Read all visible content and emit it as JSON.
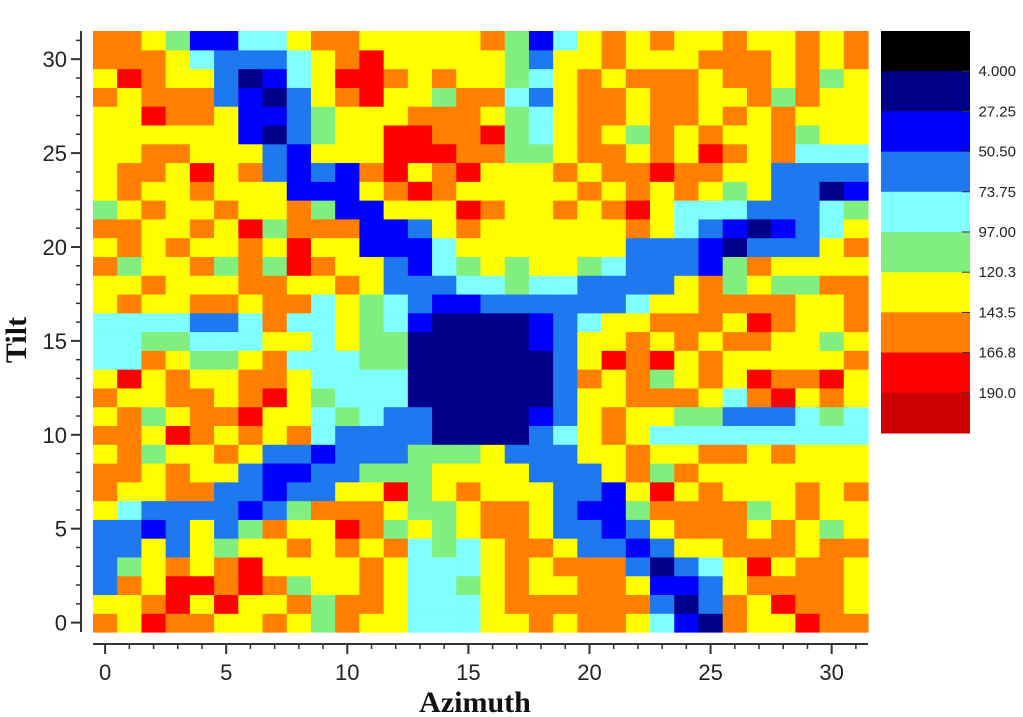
{
  "chart_data": {
    "type": "heatmap",
    "title": "",
    "xlabel": "Azimuth",
    "ylabel": "Tilt",
    "xlim": [
      -0.5,
      31.5
    ],
    "ylim": [
      -0.5,
      31.5
    ],
    "x_ticks": [
      0,
      5,
      10,
      15,
      20,
      25,
      30
    ],
    "y_ticks": [
      0,
      5,
      10,
      15,
      20,
      25,
      30
    ],
    "x_count": 32,
    "y_count": 32,
    "colorbar": {
      "position": "right",
      "labels": [
        "4.000",
        "27.25",
        "50.50",
        "73.75",
        "97.00",
        "120.3",
        "143.5",
        "166.8",
        "190.0"
      ],
      "colors": [
        "#000000",
        "#00008b",
        "#0000ff",
        "#1e78f0",
        "#7fffff",
        "#80ef80",
        "#ffff00",
        "#ff7f00",
        "#ff0000",
        "#cc0000"
      ]
    },
    "color_bins": [
      "#00008b",
      "#0000ff",
      "#1e78f0",
      "#7fffff",
      "#80ef80",
      "#ffff00",
      "#ff7f00",
      "#ff0000"
    ],
    "bin_upper_edges": [
      27.25,
      50.5,
      73.75,
      97.0,
      120.3,
      143.5,
      166.8,
      190.0
    ],
    "values_note_rows": "grid[row] = tilt value row; row 0 is tilt=0, columns are azimuth 0..31",
    "grid": [
      [
        155,
        130,
        180,
        155,
        155,
        130,
        130,
        155,
        130,
        105,
        155,
        130,
        130,
        85,
        85,
        85,
        130,
        130,
        155,
        130,
        155,
        155,
        130,
        85,
        40,
        20,
        155,
        130,
        130,
        180,
        155,
        155
      ],
      [
        130,
        130,
        155,
        180,
        130,
        180,
        130,
        130,
        155,
        105,
        155,
        155,
        130,
        85,
        85,
        85,
        130,
        155,
        155,
        155,
        155,
        155,
        155,
        60,
        20,
        60,
        155,
        130,
        180,
        155,
        155,
        130
      ],
      [
        60,
        155,
        130,
        180,
        180,
        155,
        180,
        155,
        105,
        130,
        130,
        155,
        130,
        85,
        85,
        105,
        130,
        155,
        130,
        130,
        155,
        155,
        130,
        40,
        40,
        60,
        130,
        155,
        155,
        155,
        155,
        130
      ],
      [
        60,
        105,
        130,
        155,
        130,
        155,
        180,
        130,
        130,
        130,
        130,
        155,
        130,
        85,
        85,
        85,
        130,
        155,
        130,
        155,
        155,
        155,
        60,
        20,
        60,
        85,
        130,
        180,
        130,
        155,
        155,
        130
      ],
      [
        60,
        60,
        130,
        60,
        130,
        105,
        130,
        130,
        155,
        130,
        155,
        130,
        155,
        85,
        105,
        85,
        130,
        155,
        155,
        130,
        60,
        60,
        40,
        60,
        130,
        130,
        155,
        155,
        155,
        130,
        155,
        155
      ],
      [
        60,
        60,
        40,
        60,
        130,
        60,
        105,
        155,
        130,
        130,
        180,
        155,
        105,
        130,
        105,
        130,
        155,
        155,
        130,
        60,
        60,
        40,
        60,
        130,
        155,
        155,
        155,
        130,
        155,
        130,
        105,
        130
      ],
      [
        130,
        85,
        60,
        60,
        60,
        60,
        40,
        60,
        105,
        155,
        155,
        155,
        130,
        105,
        105,
        130,
        155,
        155,
        130,
        60,
        40,
        40,
        105,
        155,
        155,
        155,
        155,
        105,
        130,
        155,
        130,
        130
      ],
      [
        155,
        130,
        130,
        155,
        155,
        60,
        60,
        40,
        60,
        60,
        130,
        130,
        180,
        105,
        130,
        155,
        130,
        130,
        130,
        60,
        60,
        40,
        130,
        180,
        130,
        155,
        130,
        130,
        130,
        155,
        130,
        155
      ],
      [
        155,
        155,
        130,
        155,
        130,
        130,
        60,
        40,
        40,
        60,
        60,
        105,
        105,
        105,
        130,
        130,
        130,
        130,
        60,
        60,
        60,
        130,
        155,
        105,
        155,
        130,
        130,
        130,
        130,
        130,
        130,
        130
      ],
      [
        130,
        155,
        105,
        130,
        130,
        155,
        130,
        60,
        60,
        40,
        60,
        60,
        60,
        105,
        105,
        105,
        130,
        60,
        60,
        60,
        130,
        130,
        155,
        130,
        130,
        155,
        155,
        130,
        155,
        130,
        130,
        130
      ],
      [
        155,
        155,
        130,
        180,
        155,
        130,
        155,
        130,
        155,
        85,
        60,
        60,
        60,
        60,
        20,
        20,
        20,
        20,
        60,
        85,
        130,
        155,
        130,
        85,
        85,
        85,
        85,
        85,
        85,
        85,
        85,
        85
      ],
      [
        130,
        155,
        105,
        130,
        155,
        155,
        180,
        130,
        130,
        85,
        105,
        85,
        60,
        60,
        20,
        20,
        20,
        20,
        40,
        60,
        130,
        155,
        130,
        130,
        105,
        105,
        60,
        60,
        60,
        85,
        105,
        85
      ],
      [
        155,
        130,
        130,
        155,
        155,
        130,
        155,
        180,
        130,
        105,
        85,
        85,
        85,
        20,
        20,
        20,
        20,
        20,
        20,
        60,
        130,
        130,
        155,
        155,
        155,
        130,
        85,
        155,
        180,
        130,
        155,
        130
      ],
      [
        130,
        180,
        130,
        155,
        130,
        130,
        155,
        155,
        130,
        85,
        85,
        85,
        85,
        20,
        20,
        20,
        20,
        20,
        20,
        60,
        155,
        130,
        155,
        105,
        130,
        155,
        130,
        180,
        155,
        155,
        180,
        130
      ],
      [
        85,
        85,
        155,
        130,
        105,
        105,
        130,
        155,
        85,
        85,
        85,
        105,
        105,
        20,
        20,
        20,
        20,
        20,
        20,
        60,
        130,
        180,
        155,
        180,
        130,
        155,
        130,
        130,
        130,
        130,
        130,
        155
      ],
      [
        85,
        85,
        105,
        105,
        85,
        85,
        85,
        130,
        130,
        85,
        130,
        105,
        105,
        20,
        20,
        20,
        20,
        20,
        40,
        60,
        130,
        130,
        155,
        130,
        155,
        130,
        155,
        155,
        130,
        130,
        105,
        130
      ],
      [
        85,
        85,
        85,
        85,
        60,
        60,
        85,
        155,
        85,
        85,
        130,
        105,
        85,
        40,
        20,
        20,
        20,
        20,
        40,
        60,
        85,
        130,
        130,
        155,
        155,
        155,
        130,
        180,
        155,
        130,
        130,
        155
      ],
      [
        130,
        155,
        130,
        130,
        155,
        155,
        130,
        155,
        155,
        85,
        130,
        105,
        85,
        60,
        40,
        40,
        60,
        60,
        60,
        60,
        60,
        60,
        85,
        130,
        130,
        155,
        155,
        155,
        155,
        130,
        130,
        155
      ],
      [
        130,
        130,
        155,
        130,
        130,
        130,
        155,
        155,
        130,
        130,
        155,
        130,
        60,
        60,
        60,
        85,
        85,
        105,
        85,
        85,
        60,
        60,
        60,
        60,
        130,
        155,
        105,
        130,
        105,
        105,
        155,
        155
      ],
      [
        155,
        105,
        130,
        130,
        155,
        105,
        155,
        105,
        180,
        155,
        130,
        130,
        60,
        40,
        85,
        105,
        130,
        105,
        130,
        130,
        105,
        85,
        60,
        60,
        60,
        40,
        105,
        155,
        130,
        130,
        130,
        130
      ],
      [
        130,
        155,
        130,
        155,
        130,
        130,
        155,
        130,
        180,
        130,
        130,
        40,
        40,
        40,
        85,
        130,
        130,
        130,
        130,
        130,
        130,
        130,
        60,
        60,
        60,
        40,
        20,
        60,
        60,
        60,
        130,
        155
      ],
      [
        155,
        155,
        130,
        130,
        155,
        130,
        180,
        105,
        155,
        155,
        155,
        40,
        40,
        60,
        130,
        155,
        130,
        130,
        130,
        130,
        130,
        130,
        155,
        130,
        85,
        60,
        40,
        20,
        40,
        60,
        85,
        130
      ],
      [
        105,
        130,
        155,
        130,
        130,
        155,
        130,
        130,
        155,
        105,
        40,
        40,
        130,
        130,
        130,
        180,
        155,
        130,
        130,
        155,
        130,
        155,
        180,
        130,
        85,
        85,
        85,
        60,
        60,
        60,
        85,
        105
      ],
      [
        130,
        155,
        130,
        130,
        155,
        130,
        130,
        130,
        40,
        40,
        40,
        130,
        155,
        180,
        155,
        130,
        130,
        130,
        130,
        130,
        155,
        130,
        155,
        130,
        155,
        130,
        105,
        130,
        60,
        60,
        20,
        40
      ],
      [
        130,
        155,
        155,
        130,
        180,
        130,
        155,
        60,
        40,
        60,
        40,
        155,
        180,
        130,
        155,
        180,
        130,
        130,
        130,
        155,
        130,
        155,
        155,
        180,
        155,
        155,
        130,
        130,
        60,
        60,
        60,
        60
      ],
      [
        130,
        130,
        155,
        155,
        130,
        130,
        130,
        60,
        40,
        130,
        130,
        130,
        180,
        180,
        180,
        155,
        155,
        105,
        105,
        130,
        155,
        155,
        130,
        155,
        130,
        180,
        155,
        130,
        155,
        85,
        85,
        85
      ],
      [
        130,
        130,
        130,
        130,
        130,
        130,
        40,
        20,
        60,
        105,
        130,
        130,
        180,
        180,
        155,
        155,
        180,
        105,
        85,
        130,
        155,
        130,
        105,
        155,
        130,
        155,
        130,
        130,
        155,
        105,
        130,
        130
      ],
      [
        130,
        130,
        180,
        155,
        155,
        130,
        40,
        40,
        60,
        105,
        130,
        130,
        130,
        155,
        155,
        155,
        130,
        105,
        85,
        130,
        155,
        155,
        130,
        155,
        155,
        130,
        155,
        130,
        155,
        130,
        130,
        130
      ],
      [
        155,
        130,
        155,
        155,
        155,
        60,
        40,
        20,
        60,
        130,
        155,
        180,
        130,
        130,
        105,
        155,
        155,
        85,
        60,
        130,
        155,
        155,
        130,
        155,
        155,
        130,
        130,
        155,
        105,
        155,
        130,
        130
      ],
      [
        130,
        180,
        155,
        130,
        130,
        60,
        20,
        40,
        85,
        130,
        180,
        180,
        155,
        130,
        155,
        130,
        130,
        105,
        85,
        130,
        155,
        130,
        155,
        155,
        155,
        130,
        155,
        155,
        130,
        155,
        105,
        130
      ],
      [
        155,
        155,
        155,
        130,
        85,
        60,
        60,
        60,
        85,
        130,
        155,
        180,
        130,
        130,
        130,
        130,
        130,
        105,
        60,
        130,
        130,
        155,
        130,
        130,
        130,
        155,
        155,
        155,
        130,
        155,
        130,
        155
      ],
      [
        155,
        155,
        130,
        105,
        40,
        40,
        85,
        85,
        130,
        155,
        155,
        130,
        130,
        130,
        130,
        130,
        155,
        105,
        40,
        85,
        130,
        155,
        130,
        155,
        130,
        130,
        155,
        130,
        130,
        155,
        130,
        155
      ]
    ]
  }
}
